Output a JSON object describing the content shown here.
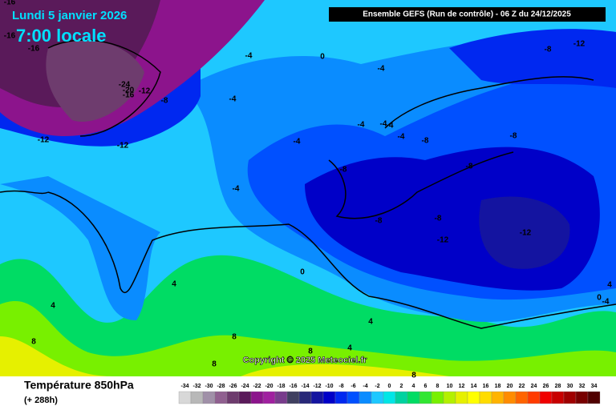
{
  "header": {
    "date": "Lundi 5 janvier 2026",
    "time": "7:00 locale",
    "run": "Ensemble GEFS  (Run de contrôle)  -  06 Z du 24/12/2025"
  },
  "copyright": "Copyright © 2025 Meteociel.fr",
  "footer": {
    "parameter": "Température 850hPa",
    "lead": "(+ 288h)"
  },
  "scale": {
    "values": [
      -34,
      -32,
      -30,
      -28,
      -26,
      -24,
      -22,
      -20,
      -18,
      -16,
      -14,
      -12,
      -10,
      -8,
      -6,
      -4,
      -2,
      0,
      2,
      4,
      6,
      8,
      10,
      12,
      14,
      16,
      18,
      20,
      22,
      24,
      26,
      28,
      30,
      32,
      34
    ],
    "colors": [
      "#d8d8d8",
      "#b8b8b8",
      "#a090a8",
      "#906090",
      "#6e3c6e",
      "#5a1a5a",
      "#8c148c",
      "#a020a0",
      "#783c8c",
      "#404060",
      "#282878",
      "#1414a0",
      "#0000c8",
      "#0028f0",
      "#0050ff",
      "#0a8cff",
      "#1ec8ff",
      "#00e6e6",
      "#00d2a0",
      "#00dc64",
      "#32e632",
      "#78f000",
      "#b4f000",
      "#e6f000",
      "#ffff00",
      "#ffdc00",
      "#ffb400",
      "#ff8c00",
      "#ff6400",
      "#ff3c00",
      "#f00000",
      "#c80000",
      "#a00000",
      "#780000",
      "#500000"
    ]
  },
  "contour_labels": [
    "-16",
    "-16",
    "-16",
    "-4",
    "0",
    "-4",
    "-8",
    "-12",
    "-24",
    "-20",
    "-16",
    "-12",
    "-8",
    "-4",
    "-12",
    "-12",
    "-4",
    "-4",
    "-4",
    "-4",
    "-4",
    "-8",
    "-8",
    "-8",
    "-8",
    "-4",
    "-8",
    "-8",
    "-12",
    "-12",
    "0",
    "4",
    "4",
    "0",
    "-4",
    "4",
    "4",
    "8",
    "8",
    "8",
    "8",
    "8",
    "4"
  ]
}
